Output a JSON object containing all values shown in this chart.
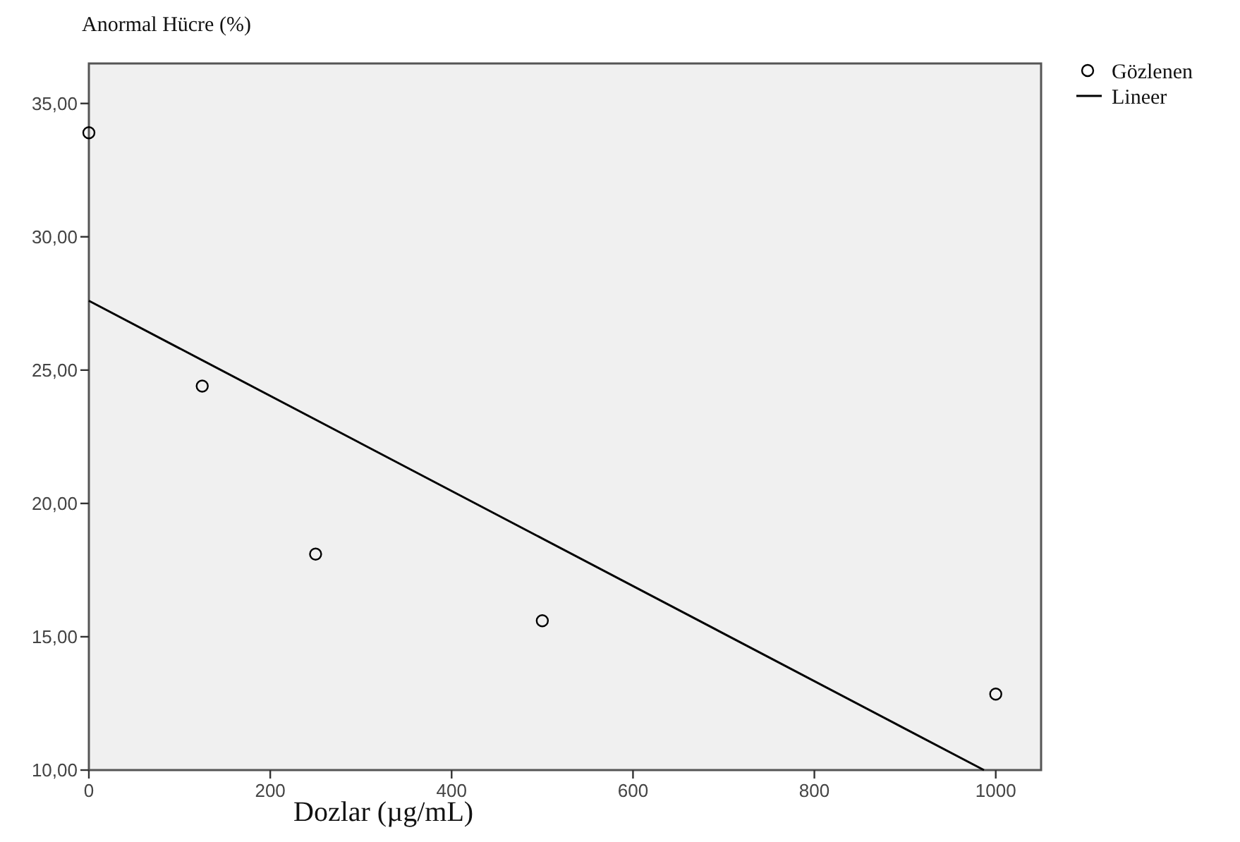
{
  "chart_data": {
    "type": "scatter",
    "ylabel": "Anormal Hücre (%)",
    "xlabel": "Dozlar (µg/mL)",
    "xlim": [
      0,
      1050
    ],
    "xticks": [
      0,
      200,
      400,
      600,
      800,
      1000
    ],
    "ylim": [
      10,
      36.5
    ],
    "yticks": [
      {
        "value": 10,
        "label": "10,00"
      },
      {
        "value": 15,
        "label": "15,00"
      },
      {
        "value": 20,
        "label": "20,00"
      },
      {
        "value": 25,
        "label": "25,00"
      },
      {
        "value": 30,
        "label": "30,00"
      },
      {
        "value": 35,
        "label": "35,00"
      }
    ],
    "legend": "top right",
    "grid": false,
    "series": [
      {
        "name": "Gözlenen",
        "marker": "circle",
        "color": "#000000",
        "x": [
          0,
          125,
          250,
          500,
          1000
        ],
        "values": [
          33.9,
          24.4,
          18.1,
          15.6,
          12.85
        ]
      },
      {
        "name": "Lineer",
        "type": "line",
        "color": "#000000",
        "x": [
          0,
          987
        ],
        "values": [
          27.6,
          10
        ]
      }
    ]
  }
}
